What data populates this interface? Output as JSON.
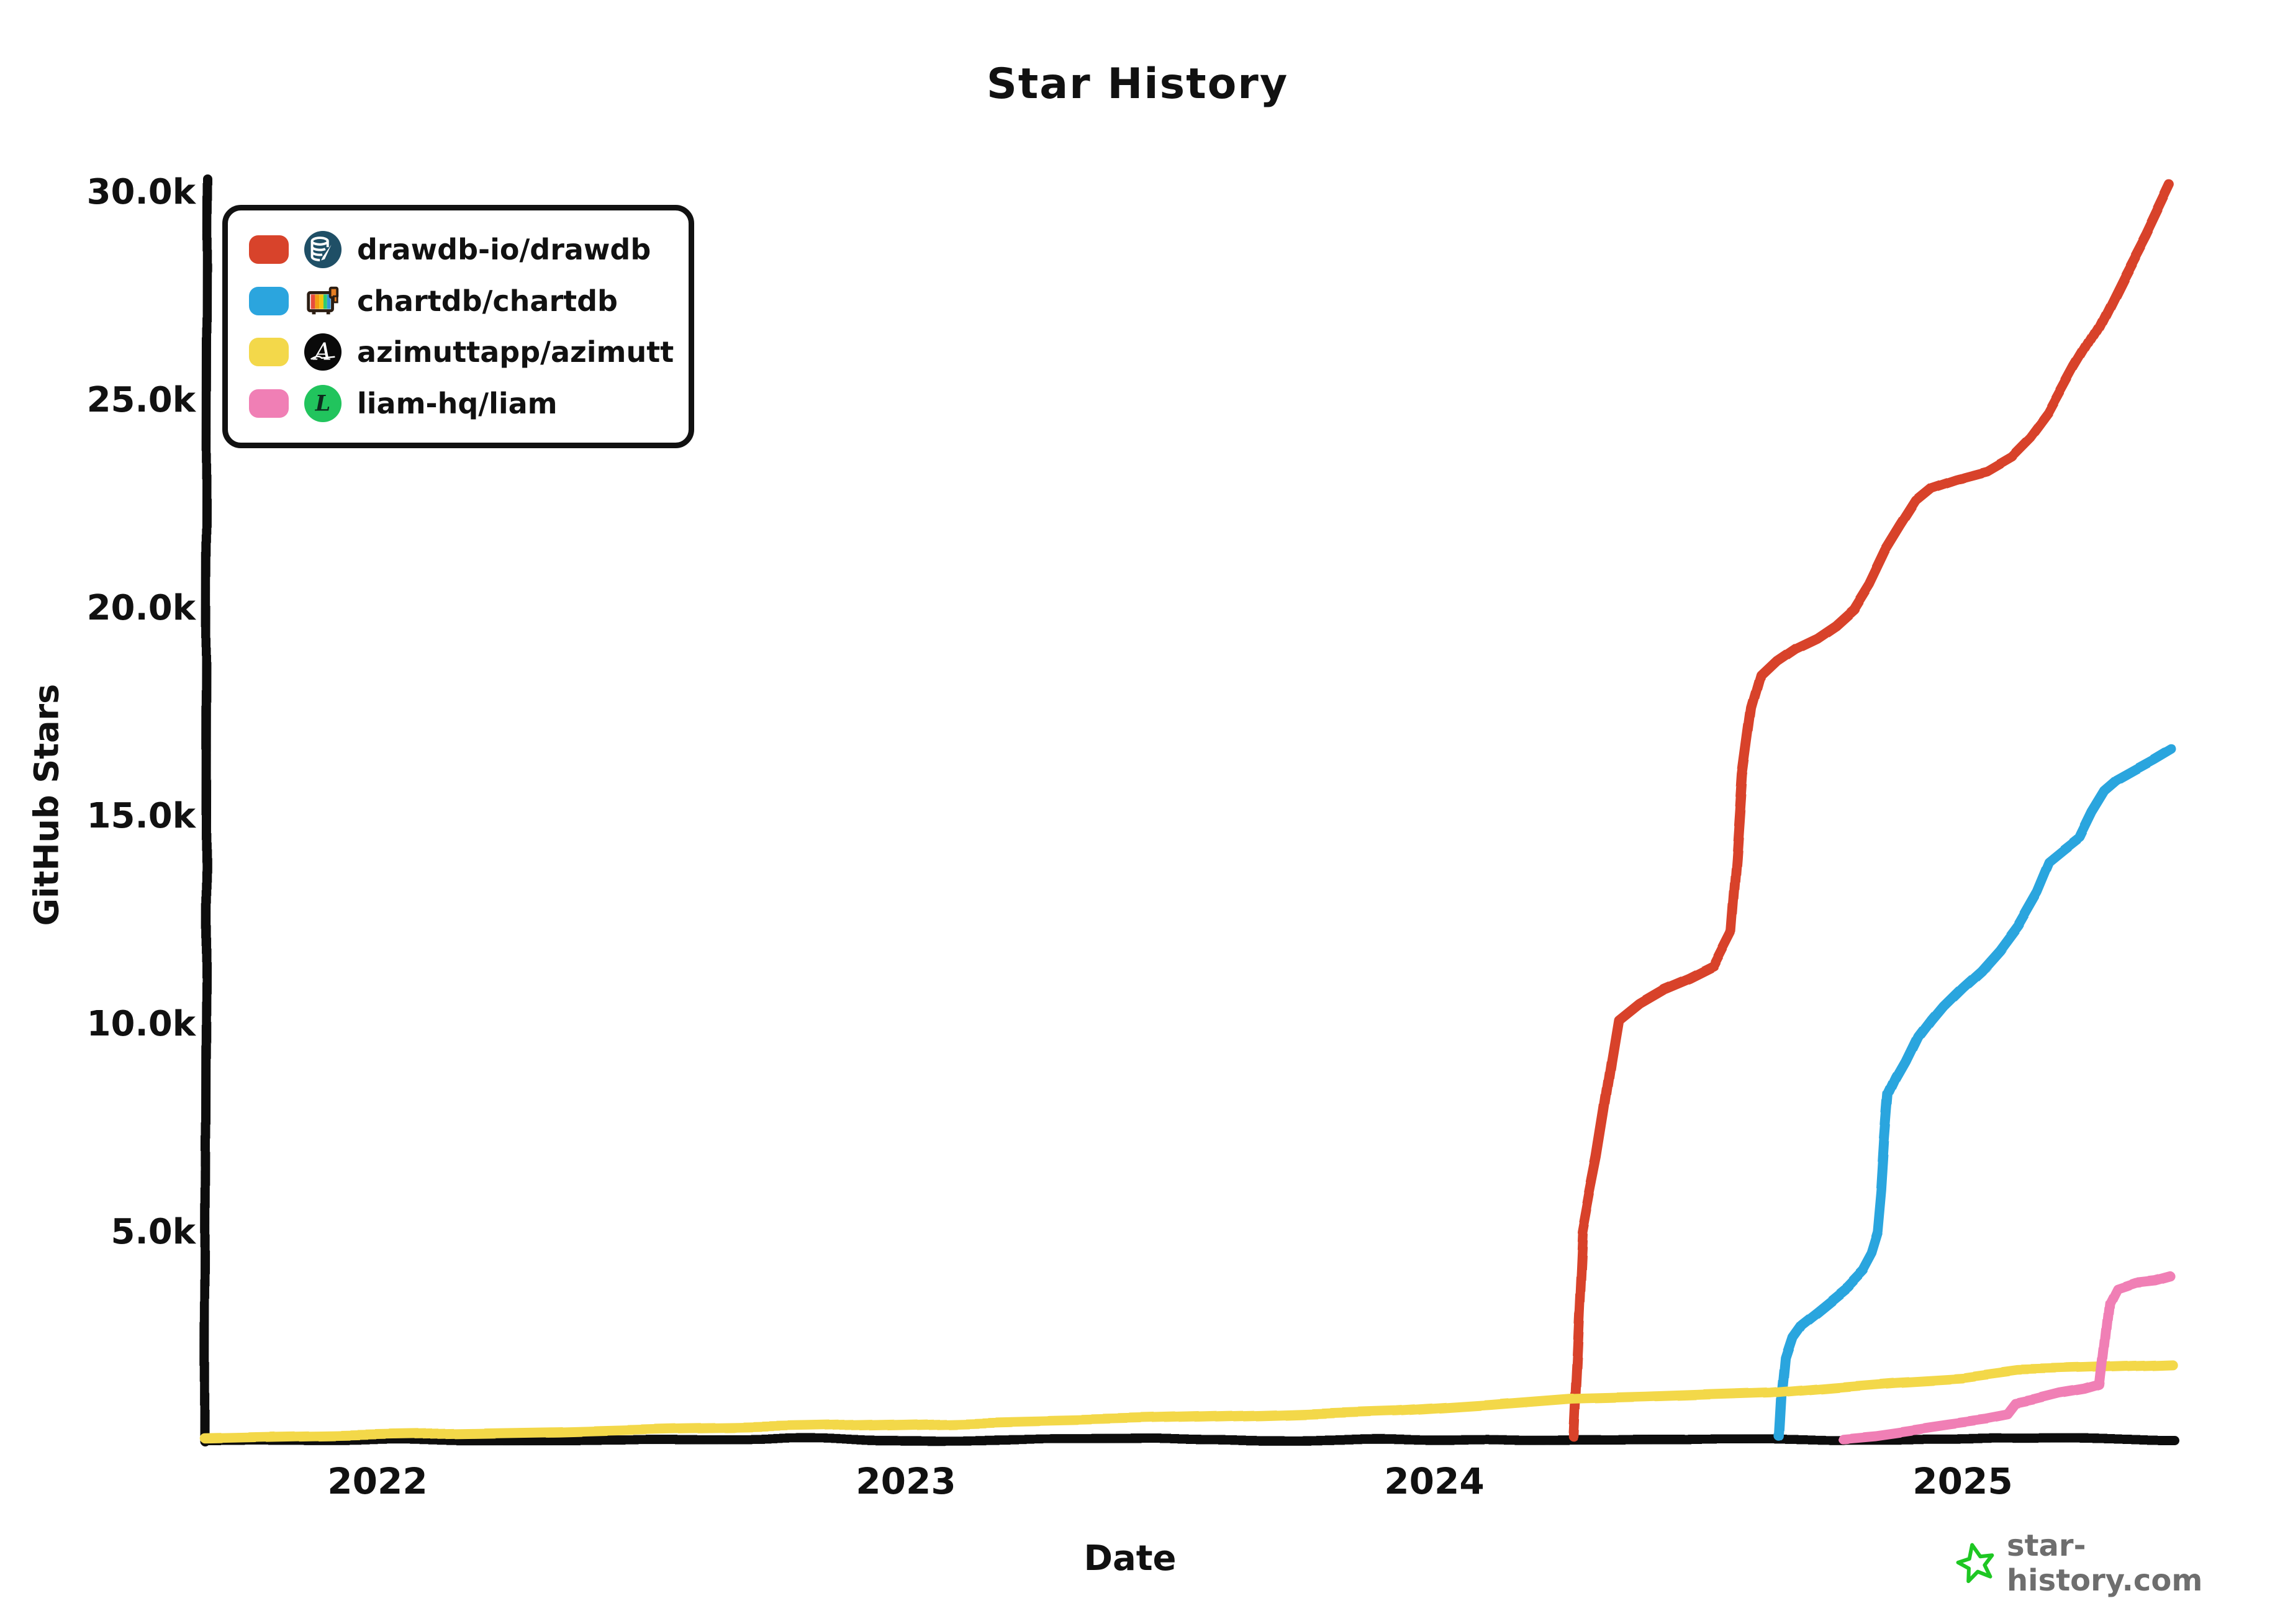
{
  "title": "Star History",
  "watermark": {
    "text": "star-history.com",
    "star_color": "#1ec723",
    "text_color": "#6e6e6e"
  },
  "legend": {
    "items": [
      {
        "label": "drawdb-io/drawdb",
        "color": "#d8432b",
        "icon": "drawdb-logo-icon"
      },
      {
        "label": "chartdb/chartdb",
        "color": "#2ba5de",
        "icon": "chartdb-logo-icon"
      },
      {
        "label": "azimuttapp/azimutt",
        "color": "#f3d84a",
        "icon": "azimutt-logo-icon"
      },
      {
        "label": "liam-hq/liam",
        "color": "#f07fb5",
        "icon": "liam-logo-icon"
      }
    ]
  },
  "chart_data": {
    "type": "line",
    "title": "Star History",
    "xlabel": "Date",
    "ylabel": "GitHub Stars",
    "grid": false,
    "legend_position": "top-left",
    "x_unit": "decimal_year",
    "x_range": [
      2021.67,
      2025.4
    ],
    "ylim": [
      0,
      30500
    ],
    "x_ticks": [
      {
        "value": 2022,
        "label": "2022"
      },
      {
        "value": 2023,
        "label": "2023"
      },
      {
        "value": 2024,
        "label": "2024"
      },
      {
        "value": 2025,
        "label": "2025"
      }
    ],
    "y_ticks": [
      {
        "value": 5000,
        "label": "5.0k"
      },
      {
        "value": 10000,
        "label": "10.0k"
      },
      {
        "value": 15000,
        "label": "15.0k"
      },
      {
        "value": 20000,
        "label": "20.0k"
      },
      {
        "value": 25000,
        "label": "25.0k"
      },
      {
        "value": 30000,
        "label": "30.0k"
      }
    ],
    "series": [
      {
        "name": "drawdb-io/drawdb",
        "color": "#d8432b",
        "points": [
          [
            2024.263,
            100
          ],
          [
            2024.272,
            2500
          ],
          [
            2024.281,
            5000
          ],
          [
            2024.294,
            5900
          ],
          [
            2024.308,
            6800
          ],
          [
            2024.322,
            7900
          ],
          [
            2024.336,
            9100
          ],
          [
            2024.349,
            10100
          ],
          [
            2024.388,
            10500
          ],
          [
            2024.435,
            10850
          ],
          [
            2024.482,
            11100
          ],
          [
            2024.529,
            11400
          ],
          [
            2024.561,
            12200
          ],
          [
            2024.572,
            14000
          ],
          [
            2024.583,
            16000
          ],
          [
            2024.6,
            17600
          ],
          [
            2024.618,
            18400
          ],
          [
            2024.647,
            18750
          ],
          [
            2024.682,
            19050
          ],
          [
            2024.723,
            19300
          ],
          [
            2024.758,
            19600
          ],
          [
            2024.793,
            20000
          ],
          [
            2024.822,
            20600
          ],
          [
            2024.852,
            21400
          ],
          [
            2024.881,
            22000
          ],
          [
            2024.911,
            22600
          ],
          [
            2024.94,
            22900
          ],
          [
            2024.987,
            23100
          ],
          [
            2025.046,
            23300
          ],
          [
            2025.093,
            23650
          ],
          [
            2025.128,
            24100
          ],
          [
            2025.163,
            24700
          ],
          [
            2025.21,
            25800
          ],
          [
            2025.257,
            26800
          ],
          [
            2025.304,
            28000
          ],
          [
            2025.345,
            29000
          ],
          [
            2025.375,
            29800
          ],
          [
            2025.39,
            30200
          ]
        ]
      },
      {
        "name": "chartdb/chartdb",
        "color": "#2ba5de",
        "points": [
          [
            2024.652,
            100
          ],
          [
            2024.657,
            1200
          ],
          [
            2024.663,
            2000
          ],
          [
            2024.676,
            2500
          ],
          [
            2024.693,
            2800
          ],
          [
            2024.723,
            3100
          ],
          [
            2024.752,
            3400
          ],
          [
            2024.781,
            3700
          ],
          [
            2024.811,
            4100
          ],
          [
            2024.828,
            4500
          ],
          [
            2024.84,
            5000
          ],
          [
            2024.847,
            6000
          ],
          [
            2024.853,
            7200
          ],
          [
            2024.86,
            8300
          ],
          [
            2024.875,
            8700
          ],
          [
            2024.893,
            9100
          ],
          [
            2024.916,
            9700
          ],
          [
            2024.94,
            10100
          ],
          [
            2024.963,
            10450
          ],
          [
            2024.999,
            10900
          ],
          [
            2025.034,
            11300
          ],
          [
            2025.069,
            11800
          ],
          [
            2025.104,
            12400
          ],
          [
            2025.14,
            13200
          ],
          [
            2025.163,
            13900
          ],
          [
            2025.192,
            14200
          ],
          [
            2025.222,
            14500
          ],
          [
            2025.245,
            15100
          ],
          [
            2025.269,
            15600
          ],
          [
            2025.292,
            15850
          ],
          [
            2025.327,
            16100
          ],
          [
            2025.363,
            16350
          ],
          [
            2025.396,
            16600
          ]
        ]
      },
      {
        "name": "azimuttapp/azimutt",
        "color": "#f3d84a",
        "points": [
          [
            2021.673,
            50
          ],
          [
            2021.873,
            100
          ],
          [
            2022.108,
            150
          ],
          [
            2022.343,
            200
          ],
          [
            2022.578,
            280
          ],
          [
            2022.813,
            330
          ],
          [
            2022.995,
            380
          ],
          [
            2023.224,
            450
          ],
          [
            2023.46,
            520
          ],
          [
            2023.695,
            600
          ],
          [
            2023.93,
            700
          ],
          [
            2024.106,
            850
          ],
          [
            2024.259,
            1000
          ],
          [
            2024.4,
            1050
          ],
          [
            2024.517,
            1100
          ],
          [
            2024.635,
            1150
          ],
          [
            2024.752,
            1280
          ],
          [
            2024.87,
            1400
          ],
          [
            2024.999,
            1500
          ],
          [
            2025.104,
            1680
          ],
          [
            2025.222,
            1720
          ],
          [
            2025.398,
            1800
          ]
        ]
      },
      {
        "name": "liam-hq/liam",
        "color": "#f07fb5",
        "points": [
          [
            2024.772,
            50
          ],
          [
            2024.834,
            120
          ],
          [
            2024.905,
            250
          ],
          [
            2024.975,
            380
          ],
          [
            2025.046,
            500
          ],
          [
            2025.087,
            600
          ],
          [
            2025.102,
            850
          ],
          [
            2025.14,
            950
          ],
          [
            2025.187,
            1100
          ],
          [
            2025.234,
            1200
          ],
          [
            2025.261,
            1300
          ],
          [
            2025.269,
            2200
          ],
          [
            2025.278,
            3300
          ],
          [
            2025.292,
            3650
          ],
          [
            2025.327,
            3800
          ],
          [
            2025.363,
            3850
          ],
          [
            2025.392,
            3950
          ]
        ]
      }
    ]
  }
}
